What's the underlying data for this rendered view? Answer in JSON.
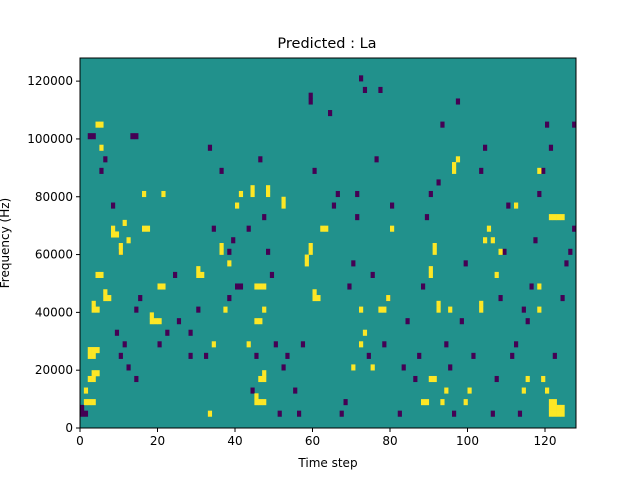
{
  "chart_data": {
    "type": "heatmap",
    "title": "Predicted : La",
    "xlabel": "Time step",
    "ylabel": "Frequency (Hz)",
    "xlim": [
      0,
      128
    ],
    "ylim": [
      0,
      128000
    ],
    "x_ticks": [
      0,
      20,
      40,
      60,
      80,
      100,
      120
    ],
    "y_ticks": [
      0,
      20000,
      40000,
      60000,
      80000,
      100000,
      120000
    ],
    "grid": false,
    "n_time_steps": 128,
    "n_freq_bins": 64,
    "freq_bin_hz": 2000,
    "colors": {
      "background": "#21918c",
      "high": "#fde725",
      "low": "#440154"
    },
    "high_cells": [
      [
        1,
        4
      ],
      [
        2,
        4
      ],
      [
        3,
        4
      ],
      [
        2,
        12
      ],
      [
        2,
        13
      ],
      [
        3,
        12
      ],
      [
        3,
        13
      ],
      [
        4,
        13
      ],
      [
        3,
        20
      ],
      [
        3,
        21
      ],
      [
        4,
        20
      ],
      [
        2,
        8
      ],
      [
        3,
        8
      ],
      [
        4,
        9
      ],
      [
        3,
        9
      ],
      [
        1,
        6
      ],
      [
        4,
        26
      ],
      [
        5,
        26
      ],
      [
        4,
        52
      ],
      [
        5,
        52
      ],
      [
        5,
        48
      ],
      [
        6,
        22
      ],
      [
        6,
        23
      ],
      [
        7,
        22
      ],
      [
        8,
        33
      ],
      [
        8,
        34
      ],
      [
        9,
        33
      ],
      [
        10,
        30
      ],
      [
        10,
        31
      ],
      [
        11,
        35
      ],
      [
        12,
        32
      ],
      [
        16,
        34
      ],
      [
        16,
        40
      ],
      [
        17,
        34
      ],
      [
        18,
        18
      ],
      [
        18,
        19
      ],
      [
        19,
        18
      ],
      [
        20,
        18
      ],
      [
        20,
        24
      ],
      [
        21,
        24
      ],
      [
        21,
        40
      ],
      [
        30,
        26
      ],
      [
        30,
        27
      ],
      [
        31,
        26
      ],
      [
        33,
        2
      ],
      [
        34,
        14
      ],
      [
        36,
        30
      ],
      [
        36,
        31
      ],
      [
        37,
        20
      ],
      [
        38,
        28
      ],
      [
        40,
        38
      ],
      [
        41,
        40
      ],
      [
        43,
        14
      ],
      [
        44,
        40
      ],
      [
        44,
        41
      ],
      [
        45,
        4
      ],
      [
        45,
        5
      ],
      [
        45,
        18
      ],
      [
        45,
        24
      ],
      [
        46,
        4
      ],
      [
        46,
        8
      ],
      [
        46,
        18
      ],
      [
        46,
        24
      ],
      [
        47,
        4
      ],
      [
        47,
        8
      ],
      [
        47,
        9
      ],
      [
        47,
        20
      ],
      [
        47,
        24
      ],
      [
        48,
        40
      ],
      [
        48,
        41
      ],
      [
        52,
        38
      ],
      [
        52,
        39
      ],
      [
        58,
        28
      ],
      [
        58,
        29
      ],
      [
        59,
        30
      ],
      [
        59,
        31
      ],
      [
        60,
        22
      ],
      [
        60,
        23
      ],
      [
        61,
        22
      ],
      [
        62,
        34
      ],
      [
        63,
        34
      ],
      [
        70,
        10
      ],
      [
        72,
        14
      ],
      [
        72,
        20
      ],
      [
        73,
        16
      ],
      [
        75,
        10
      ],
      [
        77,
        20
      ],
      [
        78,
        20
      ],
      [
        79,
        22
      ],
      [
        80,
        34
      ],
      [
        88,
        4
      ],
      [
        89,
        4
      ],
      [
        90,
        8
      ],
      [
        90,
        26
      ],
      [
        90,
        27
      ],
      [
        91,
        8
      ],
      [
        91,
        30
      ],
      [
        91,
        31
      ],
      [
        92,
        20
      ],
      [
        92,
        21
      ],
      [
        93,
        4
      ],
      [
        94,
        6
      ],
      [
        95,
        20
      ],
      [
        96,
        44
      ],
      [
        96,
        45
      ],
      [
        97,
        46
      ],
      [
        99,
        4
      ],
      [
        100,
        6
      ],
      [
        103,
        20
      ],
      [
        103,
        21
      ],
      [
        104,
        32
      ],
      [
        105,
        34
      ],
      [
        106,
        32
      ],
      [
        107,
        26
      ],
      [
        108,
        30
      ],
      [
        112,
        38
      ],
      [
        114,
        6
      ],
      [
        115,
        8
      ],
      [
        118,
        44
      ],
      [
        119,
        8
      ],
      [
        120,
        6
      ],
      [
        121,
        2
      ],
      [
        121,
        3
      ],
      [
        121,
        4
      ],
      [
        122,
        4
      ],
      [
        122,
        3
      ],
      [
        122,
        2
      ],
      [
        123,
        2
      ],
      [
        123,
        3
      ],
      [
        124,
        2
      ],
      [
        124,
        3
      ],
      [
        121,
        36
      ],
      [
        122,
        36
      ],
      [
        123,
        36
      ],
      [
        124,
        36
      ],
      [
        118,
        20
      ],
      [
        118,
        24
      ]
    ],
    "low_cells": [
      [
        0,
        2
      ],
      [
        1,
        2
      ],
      [
        0,
        3
      ],
      [
        2,
        50
      ],
      [
        3,
        50
      ],
      [
        5,
        44
      ],
      [
        6,
        46
      ],
      [
        8,
        38
      ],
      [
        9,
        16
      ],
      [
        10,
        12
      ],
      [
        10,
        30
      ],
      [
        11,
        14
      ],
      [
        12,
        10
      ],
      [
        14,
        8
      ],
      [
        14,
        20
      ],
      [
        15,
        22
      ],
      [
        13,
        50
      ],
      [
        14,
        50
      ],
      [
        20,
        14
      ],
      [
        22,
        16
      ],
      [
        24,
        26
      ],
      [
        25,
        18
      ],
      [
        28,
        12
      ],
      [
        28,
        16
      ],
      [
        30,
        20
      ],
      [
        32,
        12
      ],
      [
        33,
        48
      ],
      [
        34,
        34
      ],
      [
        36,
        44
      ],
      [
        38,
        30
      ],
      [
        38,
        22
      ],
      [
        39,
        32
      ],
      [
        40,
        24
      ],
      [
        41,
        24
      ],
      [
        43,
        34
      ],
      [
        44,
        6
      ],
      [
        45,
        12
      ],
      [
        46,
        46
      ],
      [
        47,
        36
      ],
      [
        48,
        30
      ],
      [
        49,
        26
      ],
      [
        50,
        14
      ],
      [
        51,
        2
      ],
      [
        52,
        10
      ],
      [
        53,
        12
      ],
      [
        55,
        6
      ],
      [
        56,
        2
      ],
      [
        57,
        14
      ],
      [
        59,
        56
      ],
      [
        59,
        57
      ],
      [
        60,
        44
      ],
      [
        64,
        54
      ],
      [
        65,
        38
      ],
      [
        66,
        40
      ],
      [
        67,
        2
      ],
      [
        68,
        4
      ],
      [
        69,
        24
      ],
      [
        70,
        28
      ],
      [
        71,
        36
      ],
      [
        71,
        40
      ],
      [
        72,
        60
      ],
      [
        73,
        58
      ],
      [
        74,
        12
      ],
      [
        75,
        26
      ],
      [
        76,
        46
      ],
      [
        77,
        58
      ],
      [
        78,
        14
      ],
      [
        79,
        22
      ],
      [
        80,
        38
      ],
      [
        82,
        2
      ],
      [
        83,
        10
      ],
      [
        84,
        18
      ],
      [
        86,
        8
      ],
      [
        87,
        12
      ],
      [
        88,
        24
      ],
      [
        89,
        36
      ],
      [
        90,
        40
      ],
      [
        92,
        42
      ],
      [
        93,
        52
      ],
      [
        94,
        14
      ],
      [
        95,
        10
      ],
      [
        96,
        2
      ],
      [
        97,
        56
      ],
      [
        98,
        18
      ],
      [
        99,
        28
      ],
      [
        101,
        12
      ],
      [
        103,
        44
      ],
      [
        104,
        48
      ],
      [
        106,
        2
      ],
      [
        107,
        8
      ],
      [
        108,
        22
      ],
      [
        109,
        30
      ],
      [
        110,
        38
      ],
      [
        111,
        12
      ],
      [
        112,
        14
      ],
      [
        113,
        2
      ],
      [
        114,
        20
      ],
      [
        115,
        18
      ],
      [
        116,
        24
      ],
      [
        117,
        32
      ],
      [
        118,
        40
      ],
      [
        119,
        44
      ],
      [
        120,
        52
      ],
      [
        122,
        12
      ],
      [
        124,
        22
      ],
      [
        125,
        28
      ],
      [
        126,
        30
      ],
      [
        127,
        34
      ],
      [
        127,
        52
      ],
      [
        121,
        48
      ]
    ]
  }
}
